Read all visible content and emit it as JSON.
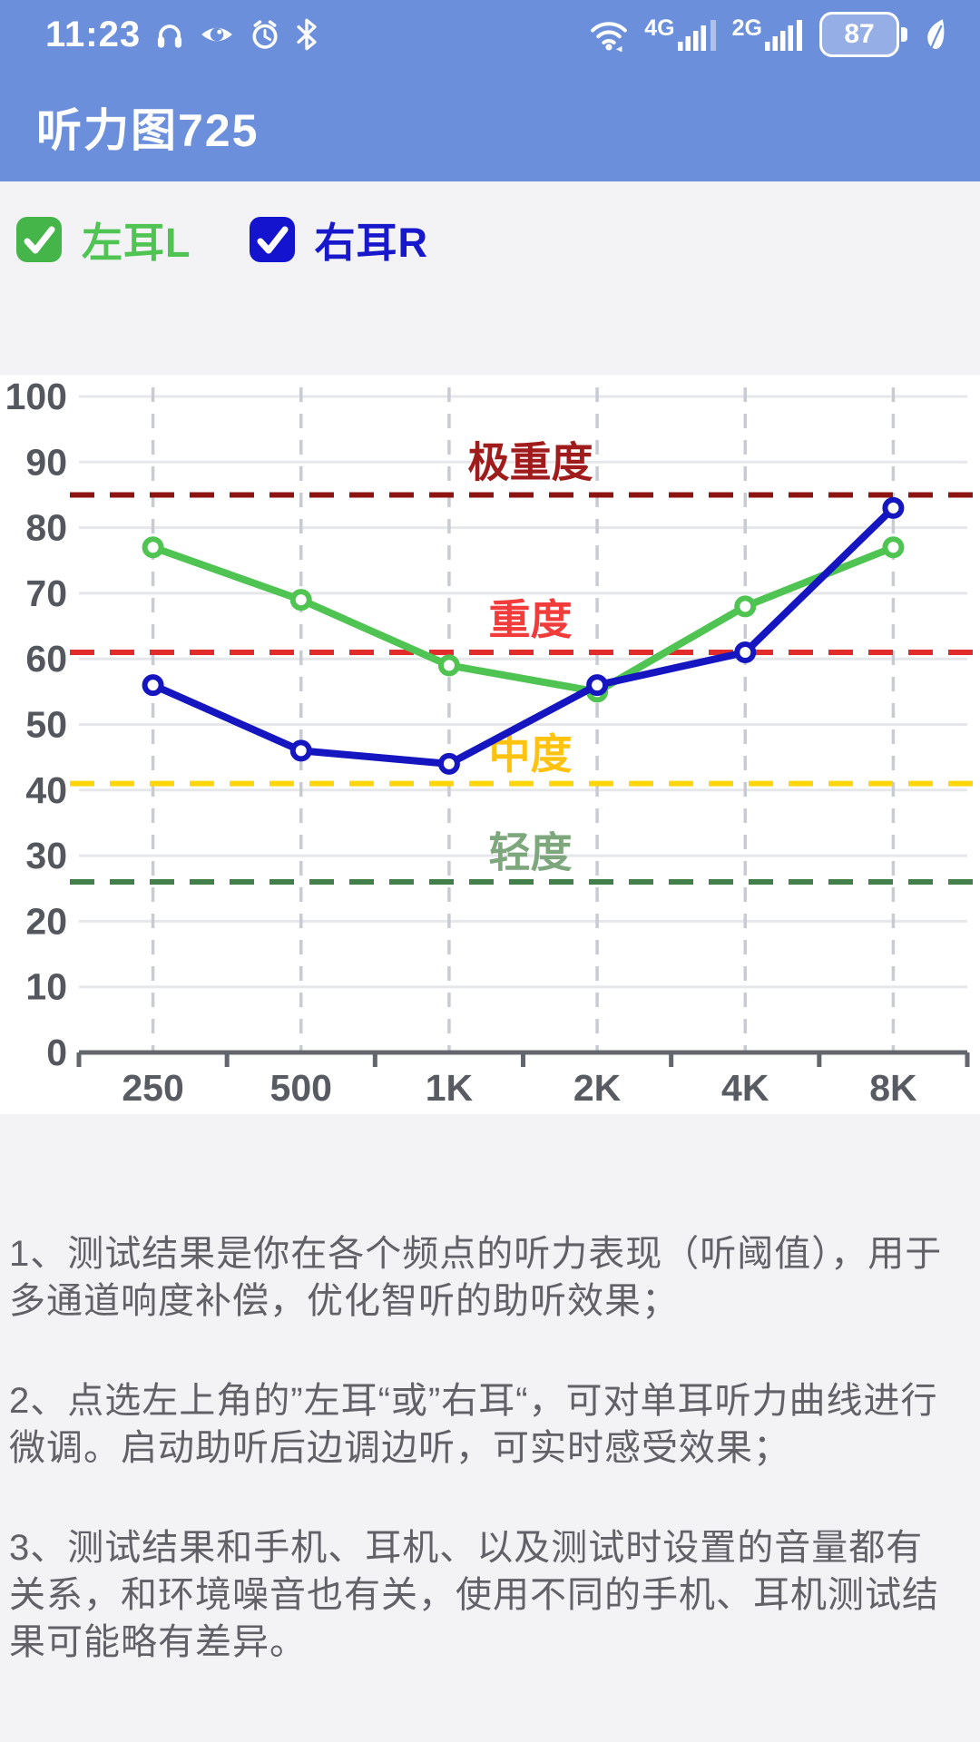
{
  "status_bar": {
    "time": "11:23",
    "left_icons": [
      "headset-icon",
      "eye-icon",
      "alarm-icon",
      "bluetooth-icon"
    ],
    "network1": "4G",
    "network2": "2G",
    "battery_percent": "87",
    "right_icons": [
      "wifi-icon",
      "signal-bars-icon",
      "battery-icon",
      "eco-leaf-icon"
    ]
  },
  "header": {
    "title": "听力图725",
    "background_color": "#6C8FDB"
  },
  "legend": {
    "left_ear": {
      "label": "左耳L",
      "checked": true,
      "box_color": "#45B449",
      "text_color": "#4FC452"
    },
    "right_ear": {
      "label": "右耳R",
      "checked": true,
      "box_color": "#1414CE",
      "text_color": "#1717CB"
    }
  },
  "chart_data": {
    "type": "line",
    "categories": [
      "250",
      "500",
      "1K",
      "2K",
      "4K",
      "8K"
    ],
    "series": [
      {
        "name": "左耳L",
        "color": "#4FC452",
        "values": [
          77,
          69,
          59,
          55,
          68,
          77
        ]
      },
      {
        "name": "右耳R",
        "color": "#1516C0",
        "values": [
          56,
          46,
          44,
          56,
          61,
          83
        ]
      }
    ],
    "ylim": [
      0,
      100
    ],
    "ytick_step": 10,
    "grid": true,
    "legend_position": "top-left-checkboxes",
    "thresholds": [
      {
        "value": 85,
        "label": "极重度",
        "line_color": "#8E1414",
        "label_color": "#A01B1B",
        "label_value": 90
      },
      {
        "value": 61,
        "label": "重度",
        "line_color": "#E22C2C",
        "label_color": "#F23C3C",
        "label_value": 66
      },
      {
        "value": 41,
        "label": "中度",
        "line_color": "#FFD60A",
        "label_color": "#FFC20E",
        "label_value": 45.5
      },
      {
        "value": 26,
        "label": "轻度",
        "line_color": "#427F4B",
        "label_color": "#7EA77E",
        "label_value": 30.5
      }
    ]
  },
  "notes": [
    "1、测试结果是你在各个频点的听力表现（听阈值），用于多通道响度补偿，优化智听的助听效果；",
    "2、点选左上角的”左耳“或”右耳“，可对单耳听力曲线进行微调。启动助听后边调边听，可实时感受效果；",
    "3、测试结果和手机、耳机、以及测试时设置的音量都有关系，和环境噪音也有关，使用不同的手机、耳机测试结果可能略有差异。"
  ]
}
